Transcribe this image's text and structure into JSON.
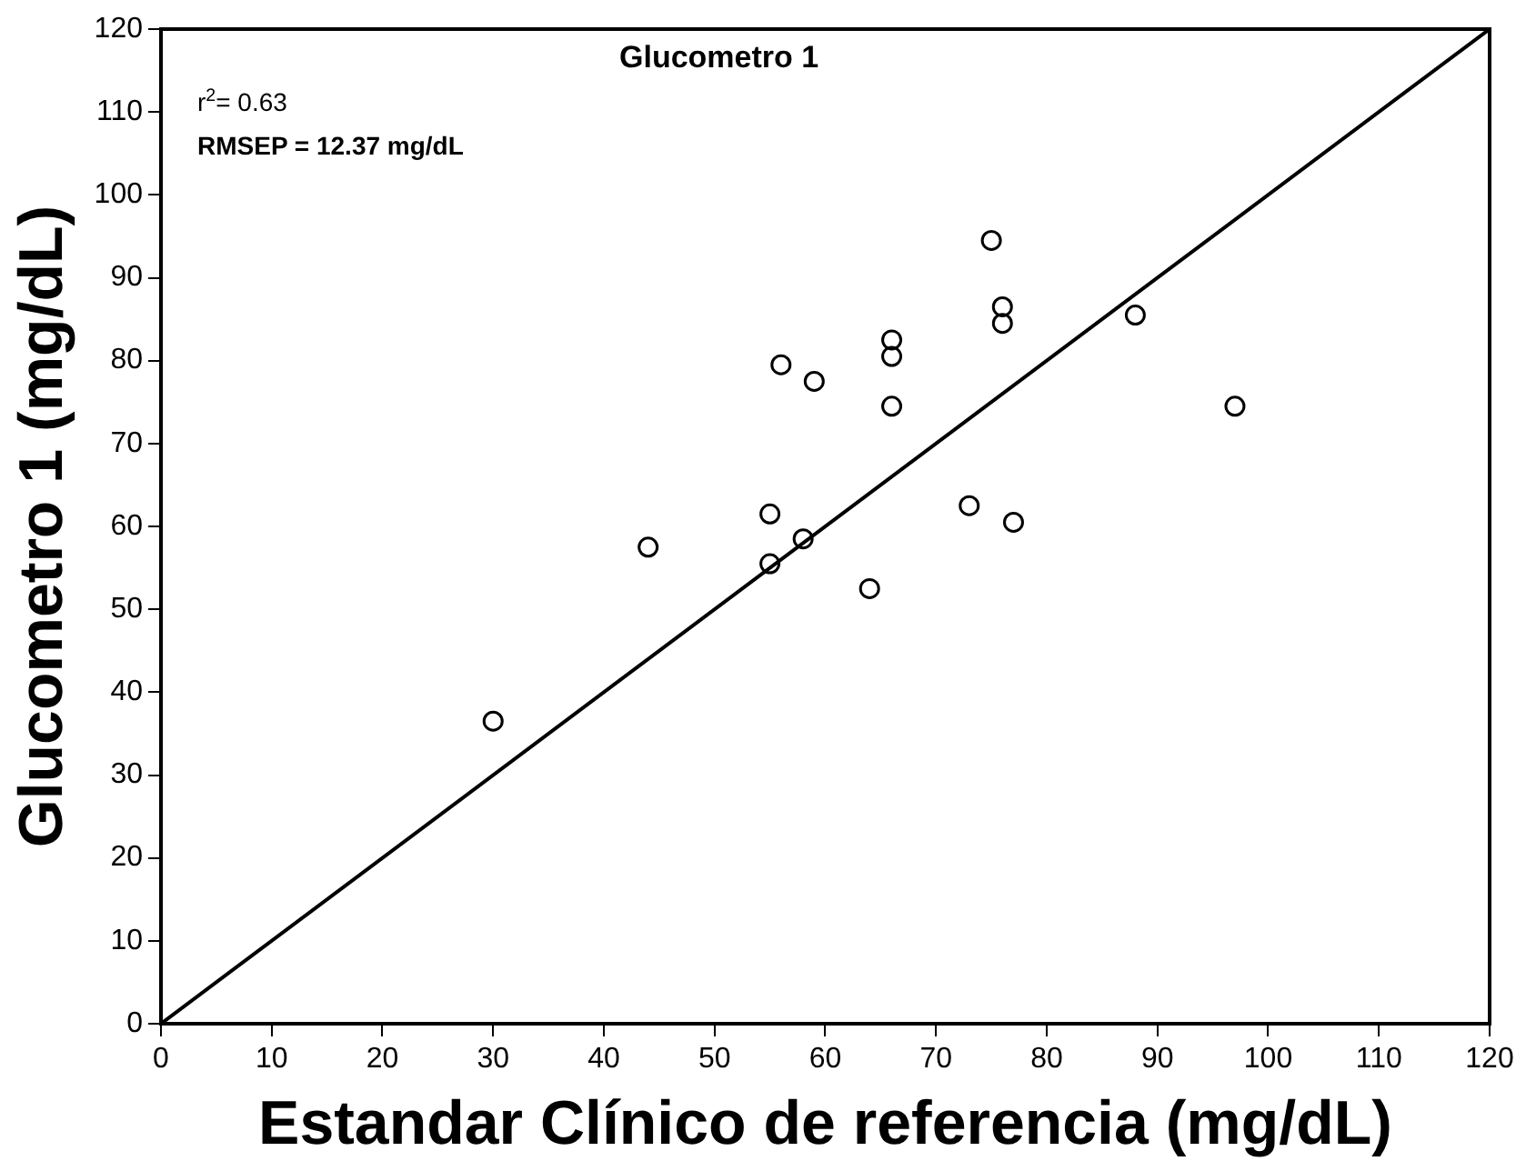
{
  "chart_data": {
    "type": "scatter",
    "title": "Glucometro 1",
    "xlabel": "Estandar Clínico de referencia (mg/dL)",
    "ylabel": "Glucometro 1 (mg/dL)",
    "annotations": [
      "r$^{2}$= 0.63",
      "RMSEP = 12.37 mg/dL"
    ],
    "xlim": [
      0,
      120
    ],
    "ylim": [
      0,
      120
    ],
    "xticks": [
      0,
      10,
      20,
      30,
      40,
      50,
      60,
      70,
      80,
      90,
      100,
      110,
      120
    ],
    "yticks": [
      0,
      10,
      20,
      30,
      40,
      50,
      60,
      70,
      80,
      90,
      100,
      110,
      120
    ],
    "grid": false,
    "legend": false,
    "marker": "circle",
    "series": [
      {
        "type": "scatter",
        "color": "#000000",
        "x": [
          30,
          44,
          55,
          55,
          56,
          58,
          59,
          64,
          66,
          66,
          66,
          73,
          75,
          76,
          76,
          77,
          88,
          97
        ],
        "values": [
          36.5,
          57.5,
          61.5,
          55.5,
          79.5,
          58.5,
          77.5,
          52.5,
          82.5,
          80.5,
          74.5,
          62.5,
          94.5,
          86.5,
          84.5,
          60.5,
          85.5,
          74.5
        ]
      },
      {
        "type": "line",
        "color": "#000000",
        "x": [
          0,
          120
        ],
        "values": [
          0,
          120
        ],
        "marker": "none",
        "line_style": "solid"
      }
    ]
  }
}
